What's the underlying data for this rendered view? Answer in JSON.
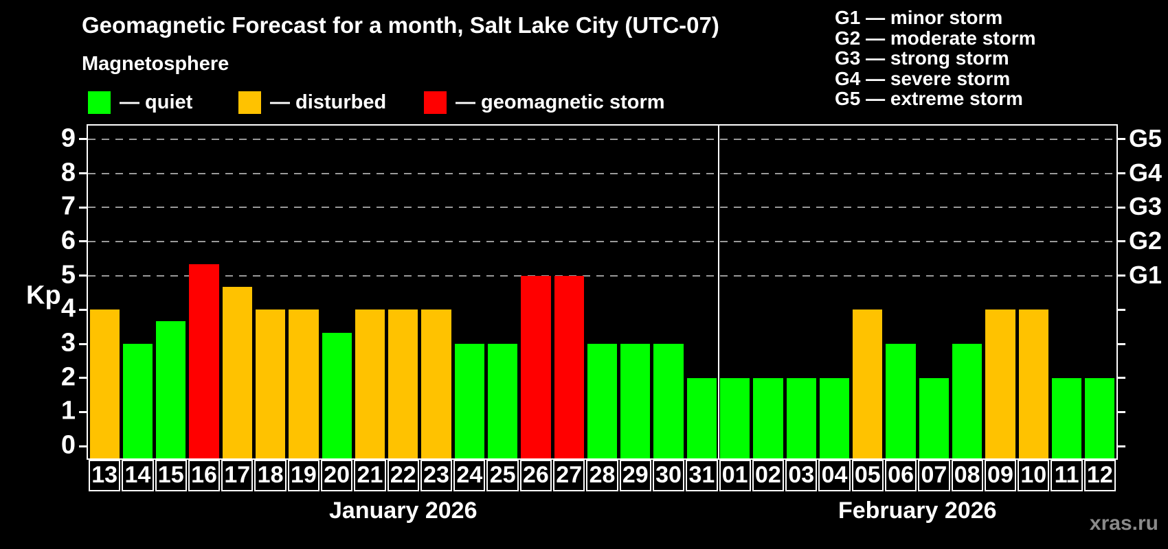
{
  "title": "Geomagnetic Forecast for a month, Salt Lake City (UTC-07)",
  "watermark": "xras.ru",
  "magnetosphere_legend": {
    "heading": "Magnetosphere",
    "items": [
      {
        "name": "quiet",
        "label": "— quiet",
        "color": "#00ff00"
      },
      {
        "name": "disturbed",
        "label": "— disturbed",
        "color": "#ffc200"
      },
      {
        "name": "storm",
        "label": "— geomagnetic storm",
        "color": "#ff0000"
      }
    ]
  },
  "g_scale_legend": {
    "lines": [
      "G1 — minor storm",
      "G2 — moderate storm",
      "G3 — strong storm",
      "G4 — severe storm",
      "G5 — extreme storm"
    ]
  },
  "chart_data": {
    "type": "bar",
    "ylabel": "Kp",
    "ylim": [
      0,
      9.4
    ],
    "yticks": [
      0,
      1,
      2,
      3,
      4,
      5,
      6,
      7,
      8,
      9
    ],
    "grid_levels": [
      5,
      6,
      7,
      8,
      9
    ],
    "legend_position": "top-left",
    "right_axis": [
      {
        "kp": 5,
        "label": "G1"
      },
      {
        "kp": 6,
        "label": "G2"
      },
      {
        "kp": 7,
        "label": "G3"
      },
      {
        "kp": 8,
        "label": "G4"
      },
      {
        "kp": 9,
        "label": "G5"
      }
    ],
    "status_colors": {
      "quiet": "#00ff00",
      "disturbed": "#ffc200",
      "storm": "#ff0000"
    },
    "months": [
      {
        "label": "January 2026",
        "days": [
          {
            "day": "13",
            "kp": 4.0,
            "status": "disturbed"
          },
          {
            "day": "14",
            "kp": 3.0,
            "status": "quiet"
          },
          {
            "day": "15",
            "kp": 3.67,
            "status": "quiet"
          },
          {
            "day": "16",
            "kp": 5.33,
            "status": "storm"
          },
          {
            "day": "17",
            "kp": 4.67,
            "status": "disturbed"
          },
          {
            "day": "18",
            "kp": 4.0,
            "status": "disturbed"
          },
          {
            "day": "19",
            "kp": 4.0,
            "status": "disturbed"
          },
          {
            "day": "20",
            "kp": 3.33,
            "status": "quiet"
          },
          {
            "day": "21",
            "kp": 4.0,
            "status": "disturbed"
          },
          {
            "day": "22",
            "kp": 4.0,
            "status": "disturbed"
          },
          {
            "day": "23",
            "kp": 4.0,
            "status": "disturbed"
          },
          {
            "day": "24",
            "kp": 3.0,
            "status": "quiet"
          },
          {
            "day": "25",
            "kp": 3.0,
            "status": "quiet"
          },
          {
            "day": "26",
            "kp": 5.0,
            "status": "storm"
          },
          {
            "day": "27",
            "kp": 5.0,
            "status": "storm"
          },
          {
            "day": "28",
            "kp": 3.0,
            "status": "quiet"
          },
          {
            "day": "29",
            "kp": 3.0,
            "status": "quiet"
          },
          {
            "day": "30",
            "kp": 3.0,
            "status": "quiet"
          },
          {
            "day": "31",
            "kp": 2.0,
            "status": "quiet"
          }
        ]
      },
      {
        "label": "February 2026",
        "days": [
          {
            "day": "01",
            "kp": 2.0,
            "status": "quiet"
          },
          {
            "day": "02",
            "kp": 2.0,
            "status": "quiet"
          },
          {
            "day": "03",
            "kp": 2.0,
            "status": "quiet"
          },
          {
            "day": "04",
            "kp": 2.0,
            "status": "quiet"
          },
          {
            "day": "05",
            "kp": 4.0,
            "status": "disturbed"
          },
          {
            "day": "06",
            "kp": 3.0,
            "status": "quiet"
          },
          {
            "day": "07",
            "kp": 2.0,
            "status": "quiet"
          },
          {
            "day": "08",
            "kp": 3.0,
            "status": "quiet"
          },
          {
            "day": "09",
            "kp": 4.0,
            "status": "disturbed"
          },
          {
            "day": "10",
            "kp": 4.0,
            "status": "disturbed"
          },
          {
            "day": "11",
            "kp": 2.0,
            "status": "quiet"
          },
          {
            "day": "12",
            "kp": 2.0,
            "status": "quiet"
          }
        ]
      }
    ]
  }
}
